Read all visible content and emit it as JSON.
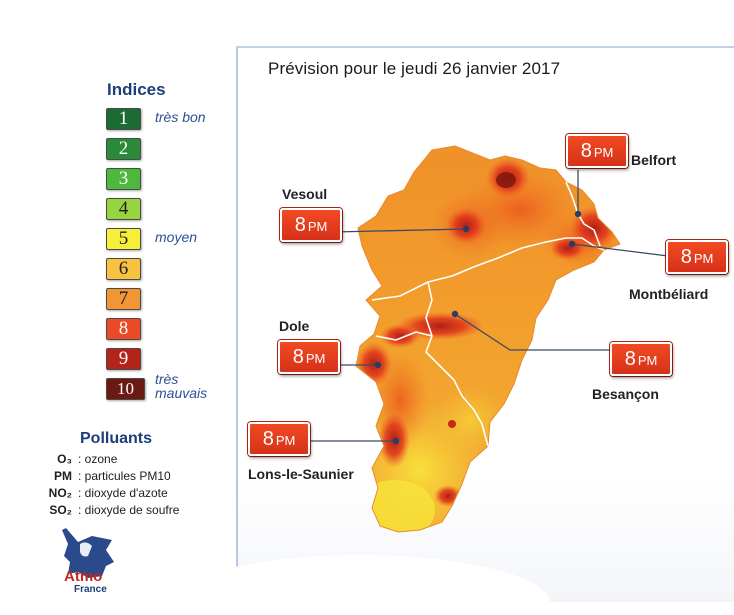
{
  "title": "Prévision pour le jeudi 26 janvier 2017",
  "legend": {
    "title": "Indices",
    "items": [
      {
        "index": "1",
        "color": "#1c6b34",
        "label": "très bon"
      },
      {
        "index": "2",
        "color": "#2b8a3a",
        "label": ""
      },
      {
        "index": "3",
        "color": "#4db83c",
        "label": ""
      },
      {
        "index": "4",
        "color": "#96d540",
        "label": ""
      },
      {
        "index": "5",
        "color": "#f7ee3a",
        "label": "moyen"
      },
      {
        "index": "6",
        "color": "#f6c240",
        "label": ""
      },
      {
        "index": "7",
        "color": "#f29534",
        "label": ""
      },
      {
        "index": "8",
        "color": "#ea4b26",
        "label": ""
      },
      {
        "index": "9",
        "color": "#b5241b",
        "label": ""
      },
      {
        "index": "10",
        "color": "#6a1a12",
        "label": "très\nmauvais"
      }
    ]
  },
  "pollutants": {
    "title": "Polluants",
    "items": [
      {
        "code": "O₃",
        "desc": ": ozone"
      },
      {
        "code": "PM",
        "desc": ": particules PM10"
      },
      {
        "code": "NO₂",
        "desc": ": dioxyde d'azote"
      },
      {
        "code": "SO₂",
        "desc": ": dioxyde de soufre"
      }
    ]
  },
  "cities": [
    {
      "name": "Belfort",
      "index": "8",
      "pollutant": "PM"
    },
    {
      "name": "Vesoul",
      "index": "8",
      "pollutant": "PM"
    },
    {
      "name": "Montbéliard",
      "index": "8",
      "pollutant": "PM"
    },
    {
      "name": "Dole",
      "index": "8",
      "pollutant": "PM"
    },
    {
      "name": "Besançon",
      "index": "8",
      "pollutant": "PM"
    },
    {
      "name": "Lons-le-Saunier",
      "index": "8",
      "pollutant": "PM"
    }
  ],
  "logo": {
    "brand": "Atmo",
    "sub": "France",
    "icon": "france-map-icon"
  }
}
